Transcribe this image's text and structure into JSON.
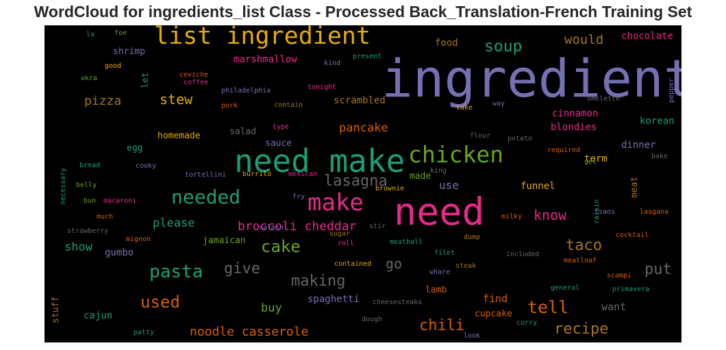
{
  "chart_data": {
    "type": "wordcloud",
    "title": "WordCloud for ingredients_list Class - Processed Back_Translation-French Training Set",
    "background": "#000000",
    "palette": {
      "purple": "#7570b3",
      "green": "#1b9e77",
      "orange": "#d95f02",
      "pink": "#e7298a",
      "lime": "#66a61e",
      "gold": "#e6ab02",
      "brown": "#a6761d",
      "gray": "#666666"
    },
    "words": [
      {
        "text": "ingredient",
        "rank": 100,
        "color": "purple"
      },
      {
        "text": "need",
        "rank": 63,
        "color": "pink"
      },
      {
        "text": "need make",
        "rank": 50,
        "color": "green"
      },
      {
        "text": "list ingredient",
        "rank": 40,
        "color": "gold"
      },
      {
        "text": "chicken",
        "rank": 37,
        "color": "lime"
      },
      {
        "text": "make",
        "rank": 37,
        "color": "pink"
      },
      {
        "text": "needed",
        "rank": 32,
        "color": "green"
      },
      {
        "text": "pasta",
        "rank": 30,
        "color": "green"
      },
      {
        "text": "used",
        "rank": 27,
        "color": "orange"
      },
      {
        "text": "cake",
        "rank": 26,
        "color": "lime"
      },
      {
        "text": "soup",
        "rank": 25,
        "color": "green"
      },
      {
        "text": "lasagna",
        "rank": 24,
        "color": "gray"
      },
      {
        "text": "give",
        "rank": 24,
        "color": "gray"
      },
      {
        "text": "making",
        "rank": 24,
        "color": "gray"
      },
      {
        "text": "tell",
        "rank": 27,
        "color": "orange"
      },
      {
        "text": "chili",
        "rank": 24,
        "color": "orange"
      },
      {
        "text": "recipe",
        "rank": 24,
        "color": "brown"
      },
      {
        "text": "taco",
        "rank": 24,
        "color": "brown"
      },
      {
        "text": "put",
        "rank": 24,
        "color": "gray"
      },
      {
        "text": "go",
        "rank": 22,
        "color": "gray"
      },
      {
        "text": "stew",
        "rank": 22,
        "color": "gold"
      },
      {
        "text": "would",
        "rank": 22,
        "color": "brown"
      },
      {
        "text": "pizza",
        "rank": 20,
        "color": "brown"
      },
      {
        "text": "know",
        "rank": 21,
        "color": "pink"
      },
      {
        "text": "noodle casserole",
        "rank": 20,
        "color": "orange"
      },
      {
        "text": "broccoli cheddar",
        "rank": 20,
        "color": "pink"
      },
      {
        "text": "please",
        "rank": 19,
        "color": "green"
      },
      {
        "text": "show",
        "rank": 19,
        "color": "green"
      },
      {
        "text": "pancake",
        "rank": 19,
        "color": "orange"
      },
      {
        "text": "buy",
        "rank": 19,
        "color": "lime"
      },
      {
        "text": "want",
        "rank": 17,
        "color": "gray"
      },
      {
        "text": "find",
        "rank": 16,
        "color": "orange"
      },
      {
        "text": "marshmallow",
        "rank": 16,
        "color": "pink"
      },
      {
        "text": "scrambled",
        "rank": 16,
        "color": "brown"
      },
      {
        "text": "cinnamon",
        "rank": 16,
        "color": "pink"
      },
      {
        "text": "blondies",
        "rank": 15,
        "color": "pink"
      },
      {
        "text": "korean",
        "rank": 15,
        "color": "green"
      },
      {
        "text": "chocolate",
        "rank": 15,
        "color": "pink"
      },
      {
        "text": "food",
        "rank": 15,
        "color": "brown"
      },
      {
        "text": "use",
        "rank": 17,
        "color": "purple"
      },
      {
        "text": "funnel",
        "rank": 15,
        "color": "gold"
      },
      {
        "text": "dinner",
        "rank": 15,
        "color": "purple"
      },
      {
        "text": "term",
        "rank": 15,
        "color": "gold"
      },
      {
        "text": "meat",
        "rank": 15,
        "color": "brown"
      },
      {
        "text": "made",
        "rank": 15,
        "color": "lime"
      },
      {
        "text": "spaghetti",
        "rank": 15,
        "color": "purple"
      },
      {
        "text": "lamb",
        "rank": 15,
        "color": "orange"
      },
      {
        "text": "cupcake",
        "rank": 15,
        "color": "orange"
      },
      {
        "text": "cajun",
        "rank": 15,
        "color": "green"
      },
      {
        "text": "jamaican",
        "rank": 14,
        "color": "lime"
      },
      {
        "text": "gumbo",
        "rank": 14,
        "color": "purple"
      },
      {
        "text": "shrimp",
        "rank": 14,
        "color": "purple"
      },
      {
        "text": "homemade",
        "rank": 14,
        "color": "gold"
      },
      {
        "text": "egg",
        "rank": 14,
        "color": "green"
      },
      {
        "text": "salad",
        "rank": 14,
        "color": "gray"
      },
      {
        "text": "sauce",
        "rank": 14,
        "color": "purple"
      },
      {
        "text": "stuff",
        "rank": 14,
        "color": "brown"
      },
      {
        "text": "let",
        "rank": 14,
        "color": "green"
      },
      {
        "text": "pepper",
        "rank": 11,
        "color": "purple"
      },
      {
        "text": "omelette",
        "rank": 10,
        "color": "gray"
      },
      {
        "text": "take",
        "rank": 10,
        "color": "gold"
      },
      {
        "text": "way",
        "rank": 10,
        "color": "purple"
      },
      {
        "text": "flour",
        "rank": 10,
        "color": "gray"
      },
      {
        "text": "potato",
        "rank": 10,
        "color": "gray"
      },
      {
        "text": "required",
        "rank": 10,
        "color": "orange"
      },
      {
        "text": "get",
        "rank": 10,
        "color": "lime"
      },
      {
        "text": "bake",
        "rank": 10,
        "color": "gray"
      },
      {
        "text": "king",
        "rank": 10,
        "color": "gray"
      },
      {
        "text": "brownie",
        "rank": 10,
        "color": "gold"
      },
      {
        "text": "fry",
        "rank": 10,
        "color": "purple"
      },
      {
        "text": "stir",
        "rank": 10,
        "color": "gray"
      },
      {
        "text": "sugar",
        "rank": 10,
        "color": "brown"
      },
      {
        "text": "roll",
        "rank": 10,
        "color": "pink"
      },
      {
        "text": "meatball",
        "rank": 10,
        "color": "green"
      },
      {
        "text": "dump",
        "rank": 10,
        "color": "brown"
      },
      {
        "text": "filet",
        "rank": 10,
        "color": "green"
      },
      {
        "text": "contained",
        "rank": 10,
        "color": "gold"
      },
      {
        "text": "whare",
        "rank": 10,
        "color": "purple"
      },
      {
        "text": "steak",
        "rank": 10,
        "color": "brown"
      },
      {
        "text": "included",
        "rank": 10,
        "color": "gray"
      },
      {
        "text": "cocktail",
        "rank": 10,
        "color": "orange"
      },
      {
        "text": "meatloaf",
        "rank": 10,
        "color": "orange"
      },
      {
        "text": "scampi",
        "rank": 10,
        "color": "orange"
      },
      {
        "text": "primavera",
        "rank": 10,
        "color": "green"
      },
      {
        "text": "general",
        "rank": 10,
        "color": "green"
      },
      {
        "text": "curry",
        "rank": 10,
        "color": "green"
      },
      {
        "text": "look",
        "rank": 10,
        "color": "purple"
      },
      {
        "text": "dough",
        "rank": 10,
        "color": "gray"
      },
      {
        "text": "cheesesteaks",
        "rank": 10,
        "color": "gray"
      },
      {
        "text": "patty",
        "rank": 10,
        "color": "green"
      },
      {
        "text": "salmon",
        "rank": 10,
        "color": "purple"
      },
      {
        "text": "burrito",
        "rank": 10,
        "color": "gold"
      },
      {
        "text": "mexican",
        "rank": 10,
        "color": "pink"
      },
      {
        "text": "tortellini",
        "rank": 10,
        "color": "purple"
      },
      {
        "text": "cooky",
        "rank": 10,
        "color": "purple"
      },
      {
        "text": "bread",
        "rank": 10,
        "color": "green"
      },
      {
        "text": "belly",
        "rank": 10,
        "color": "lime"
      },
      {
        "text": "bun",
        "rank": 10,
        "color": "lime"
      },
      {
        "text": "macaroni",
        "rank": 10,
        "color": "pink"
      },
      {
        "text": "much",
        "rank": 10,
        "color": "orange"
      },
      {
        "text": "strawberry",
        "rank": 10,
        "color": "gray"
      },
      {
        "text": "mignon",
        "rank": 10,
        "color": "orange"
      },
      {
        "text": "necessary",
        "rank": 10,
        "color": "green"
      },
      {
        "text": "milky",
        "rank": 10,
        "color": "orange"
      },
      {
        "text": "raisin",
        "rank": 10,
        "color": "green"
      },
      {
        "text": "tsaos",
        "rank": 10,
        "color": "purple"
      },
      {
        "text": "lasgana",
        "rank": 10,
        "color": "orange"
      },
      {
        "text": "type",
        "rank": 10,
        "color": "pink"
      },
      {
        "text": "contain",
        "rank": 10,
        "color": "brown"
      },
      {
        "text": "pork",
        "rank": 10,
        "color": "orange"
      },
      {
        "text": "philadelphia",
        "rank": 10,
        "color": "purple"
      },
      {
        "text": "tonight",
        "rank": 10,
        "color": "pink"
      },
      {
        "text": "ceviche",
        "rank": 10,
        "color": "orange"
      },
      {
        "text": "coffee",
        "rank": 10,
        "color": "pink"
      },
      {
        "text": "okra",
        "rank": 10,
        "color": "lime"
      },
      {
        "text": "good",
        "rank": 10,
        "color": "gold"
      },
      {
        "text": "kind",
        "rank": 10,
        "color": "purple"
      },
      {
        "text": "present",
        "rank": 10,
        "color": "green"
      },
      {
        "text": "la",
        "rank": 10,
        "color": "green"
      },
      {
        "text": "foe",
        "rank": 10,
        "color": "lime"
      }
    ]
  }
}
